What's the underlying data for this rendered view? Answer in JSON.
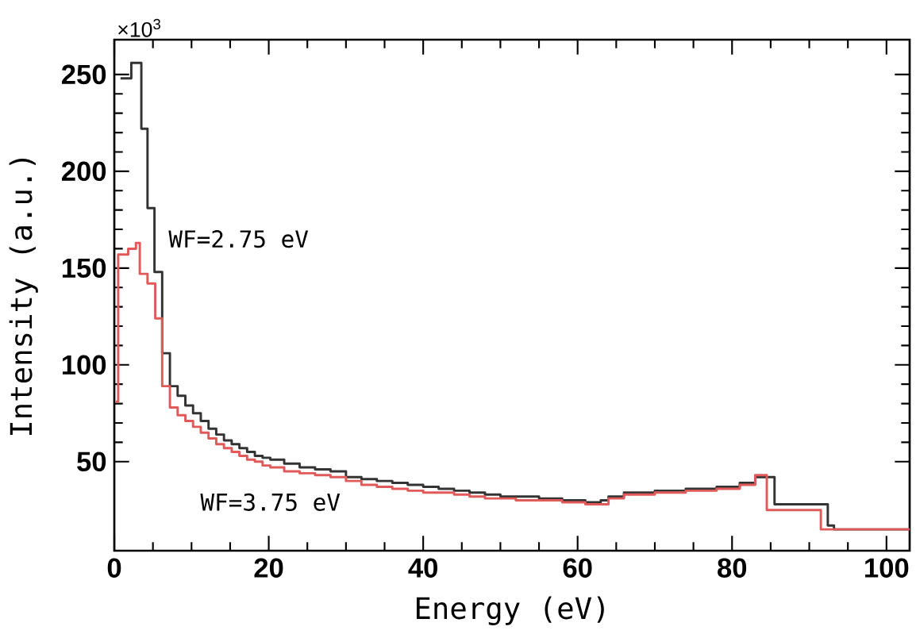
{
  "chart_data": {
    "type": "step",
    "xlabel": "Energy (eV)",
    "ylabel": "Intensity (a.u.)",
    "xlim": [
      0,
      103
    ],
    "ylim": [
      4,
      268
    ],
    "xticks": [
      0,
      20,
      40,
      60,
      80,
      100
    ],
    "yticks": [
      50,
      100,
      150,
      200,
      250
    ],
    "grid": false,
    "annotations": [
      "×10$^{3}$",
      "WF=2.75 eV",
      "WF=3.75 eV"
    ],
    "series": [
      {
        "color": "#333333",
        "x": [
          0.8,
          2.2,
          3.5,
          4.3,
          5.2,
          6.2,
          7.2,
          8.2,
          9.2,
          10.2,
          11.2,
          12.2,
          13.2,
          14.2,
          15.2,
          16.2,
          17.2,
          18.2,
          19.2,
          20.2,
          22,
          24,
          26,
          28,
          30,
          32,
          34,
          36,
          38,
          40,
          42,
          44,
          46,
          48,
          50,
          52,
          55,
          58,
          61,
          63,
          64,
          66,
          70,
          74,
          78,
          81,
          83,
          85.5,
          92.4,
          93.2,
          103
        ],
        "values": [
          248,
          256,
          222,
          181,
          148,
          106,
          89,
          84,
          79,
          75,
          71,
          67,
          64,
          61,
          59,
          57,
          55,
          53,
          52,
          51,
          49,
          47,
          46,
          45,
          42,
          41,
          40,
          39,
          38,
          37,
          36,
          35,
          34,
          33,
          32,
          32,
          31,
          30,
          29,
          30,
          32,
          34,
          35,
          36,
          37,
          39,
          42,
          28,
          17,
          15,
          15
        ]
      },
      {
        "color": "#e05a5a",
        "x": [
          0.2,
          0.5,
          1.8,
          2.8,
          3.3,
          4.3,
          5.3,
          6.2,
          7.2,
          8.2,
          9.2,
          10.2,
          11.2,
          12.2,
          13.2,
          14.2,
          15.2,
          16.2,
          17.2,
          18.2,
          19.2,
          20.2,
          22,
          24,
          26,
          28,
          30,
          32,
          34,
          36,
          38,
          40,
          42,
          44,
          46,
          48,
          50,
          52,
          55,
          58,
          61,
          63,
          64,
          66,
          70,
          74,
          78,
          81,
          83,
          84.5,
          91.5,
          103
        ],
        "values": [
          81,
          157,
          160,
          163,
          147,
          142,
          124,
          89,
          78,
          74,
          71,
          68,
          65,
          62,
          59,
          57,
          55,
          53,
          51,
          50,
          48,
          47,
          45,
          44,
          43,
          42,
          40,
          38,
          37,
          36,
          35,
          34,
          34,
          33,
          32,
          31,
          31,
          30,
          30,
          29,
          28,
          28,
          31,
          33,
          34,
          35,
          36,
          38,
          43,
          25,
          15,
          15
        ]
      }
    ]
  }
}
